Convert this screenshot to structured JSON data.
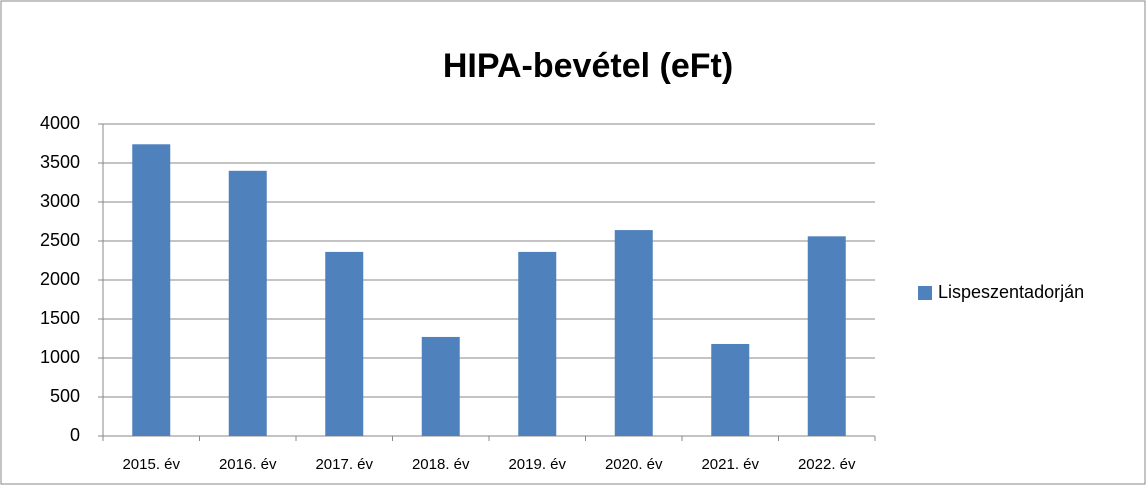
{
  "chart_data": {
    "type": "bar",
    "title": "HIPA-bevétel (eFt)",
    "categories": [
      "2015. év",
      "2016. év",
      "2017. év",
      "2018. év",
      "2019. év",
      "2020. év",
      "2021. év",
      "2022. év"
    ],
    "series": [
      {
        "name": "Lispeszentadorján",
        "color": "#4f81bd",
        "values": [
          3740,
          3400,
          2360,
          1270,
          2360,
          2640,
          1180,
          2560
        ]
      }
    ],
    "ylim": [
      0,
      4000
    ],
    "yticks": [
      0,
      500,
      1000,
      1500,
      2000,
      2500,
      3000,
      3500,
      4000
    ],
    "grid": true,
    "legend": "right"
  }
}
